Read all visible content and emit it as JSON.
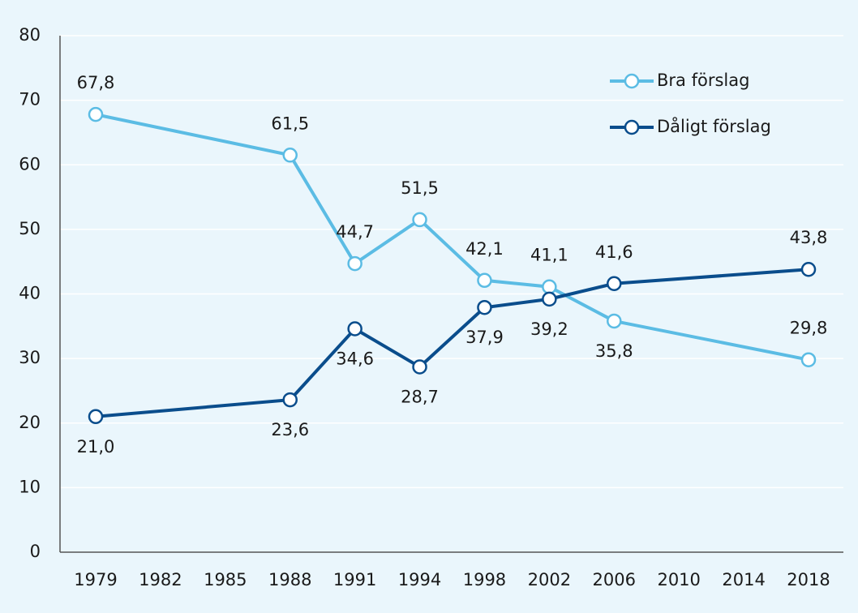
{
  "chart_data": {
    "type": "line",
    "categories": [
      "1979",
      "1982",
      "1985",
      "1988",
      "1991",
      "1994",
      "1998",
      "2002",
      "2006",
      "2010",
      "2014",
      "2018"
    ],
    "series": [
      {
        "name": "Bra förslag",
        "color": "#5bbce4",
        "x": [
          "1979",
          "1988",
          "1991",
          "1994",
          "1998",
          "2002",
          "2006",
          "2018"
        ],
        "values": [
          67.8,
          61.5,
          44.7,
          51.5,
          42.1,
          41.1,
          35.8,
          29.8
        ],
        "value_labels": [
          "67,8",
          "61,5",
          "44,7",
          "51,5",
          "42,1",
          "41,1",
          "35,8",
          "29,8"
        ]
      },
      {
        "name": "Dåligt förslag",
        "color": "#0a4d8c",
        "x": [
          "1979",
          "1988",
          "1991",
          "1994",
          "1998",
          "2002",
          "2006",
          "2018"
        ],
        "values": [
          21.0,
          23.6,
          34.6,
          28.7,
          37.9,
          39.2,
          41.6,
          43.8
        ],
        "value_labels": [
          "21,0",
          "23,6",
          "34,6",
          "28,7",
          "37,9",
          "39,2",
          "41,6",
          "43,8"
        ]
      }
    ],
    "ylim": [
      0,
      80
    ],
    "yticks": [
      0,
      10,
      20,
      30,
      40,
      50,
      60,
      70,
      80
    ],
    "grid": true,
    "legend": "top-right"
  }
}
